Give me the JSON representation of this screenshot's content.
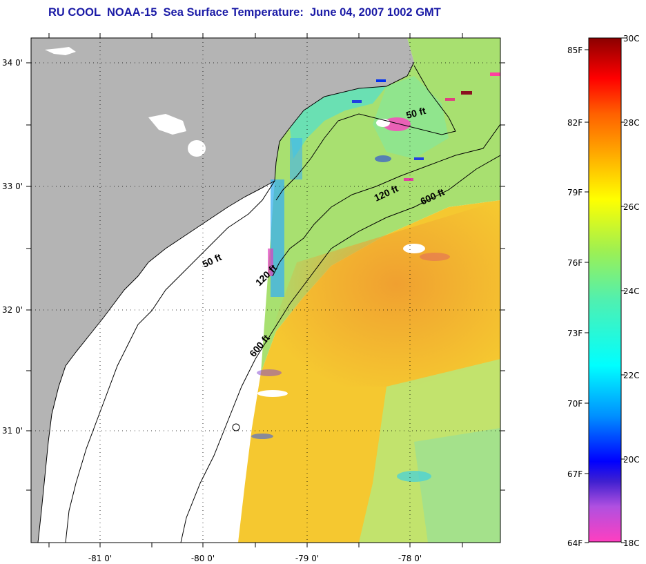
{
  "title": "RU COOL  NOAA-15  Sea Surface Temperature:  June 04, 2007 1002 GMT",
  "lat_labels": [
    "34 0'",
    "33 0'",
    "32 0'",
    "31 0'"
  ],
  "lon_labels": [
    "-81 0'",
    "-80 0'",
    "-79 0'",
    "-78 0'"
  ],
  "contours": [
    "50 ft",
    "120 ft",
    "600 ft"
  ],
  "colorbar": {
    "fahrenheit": [
      "85F",
      "82F",
      "79F",
      "76F",
      "73F",
      "70F",
      "67F",
      "64F"
    ],
    "celsius": [
      "30C",
      "28C",
      "26C",
      "24C",
      "22C",
      "20C",
      "18C"
    ]
  },
  "colors": {
    "land": "#b4b4b4",
    "title": "#1a1aa6",
    "warm_water": "#f0b428",
    "shelf_water": "#a8e070"
  }
}
